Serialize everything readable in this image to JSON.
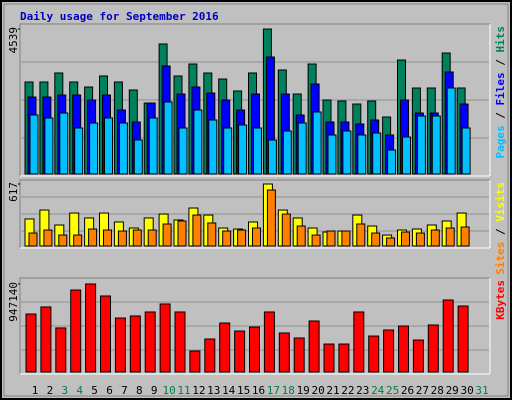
{
  "chart_data": {
    "type": "bar",
    "title": "Daily usage for September 2016",
    "title_color": "#0000c0",
    "categories": [
      "1",
      "2",
      "3",
      "4",
      "5",
      "6",
      "7",
      "8",
      "9",
      "10",
      "11",
      "12",
      "13",
      "14",
      "15",
      "16",
      "17",
      "18",
      "19",
      "20",
      "21",
      "22",
      "23",
      "24",
      "25",
      "26",
      "27",
      "28",
      "29",
      "30",
      "31"
    ],
    "category_colors": [
      "#000000",
      "#000000",
      "#008040",
      "#008040",
      "#000000",
      "#000000",
      "#000000",
      "#000000",
      "#000000",
      "#008040",
      "#008040",
      "#000000",
      "#000000",
      "#000000",
      "#000000",
      "#000000",
      "#008040",
      "#008040",
      "#000000",
      "#000000",
      "#000000",
      "#000000",
      "#000000",
      "#008040",
      "#008040",
      "#000000",
      "#000000",
      "#000000",
      "#000000",
      "#000000",
      "#008040"
    ],
    "legend_separator": " / ",
    "panels": [
      {
        "ylim": [
          0,
          4633
        ],
        "yticks": [
          4539
        ],
        "series": [
          {
            "name": "Hits",
            "color": "#00805c",
            "values": [
              2880,
              2880,
              3162,
              2880,
              2723,
              3068,
              2880,
              2630,
              2222,
              4070,
              3068,
              3443,
              3162,
              2974,
              2598,
              3162,
              4539,
              3256,
              2504,
              3443,
              2316,
              2285,
              2191,
              2285,
              1784,
              3568,
              2692,
              2692,
              3787,
              2692,
              null
            ]
          },
          {
            "name": "Files",
            "color": "#0000ff",
            "values": [
              2410,
              2410,
              2473,
              2473,
              2316,
              2473,
              2003,
              1628,
              2222,
              3380,
              2504,
              2723,
              2535,
              2316,
              2003,
              2504,
              3662,
              2504,
              1847,
              2817,
              1628,
              1628,
              1565,
              1690,
              1221,
              2316,
              1909,
              1909,
              3193,
              2191,
              null
            ]
          },
          {
            "name": "Pages",
            "color": "#00c0ff",
            "values": [
              1847,
              1753,
              1909,
              1440,
              1596,
              1753,
              1596,
              1064,
              1753,
              2254,
              1440,
              2003,
              1690,
              1440,
              1534,
              1440,
              1064,
              1346,
              1596,
              1941,
              1221,
              1346,
              1221,
              1283,
              751,
              1158,
              1815,
              1815,
              2692,
              1440,
              null
            ]
          }
        ]
      },
      {
        "ylim": [
          0,
          637
        ],
        "yticks": [
          617
        ],
        "series": [
          {
            "name": "Visits",
            "color": "#ffff00",
            "values": [
              269,
              358,
              209,
              328,
              279,
              328,
              239,
              179,
              279,
              318,
              259,
              378,
              308,
              179,
              169,
              239,
              617,
              358,
              279,
              179,
              139,
              149,
              308,
              199,
              109,
              159,
              169,
              209,
              249,
              328,
              null
            ]
          },
          {
            "name": "Sites",
            "color": "#ff8000",
            "values": [
              129,
              159,
              109,
              109,
              169,
              159,
              149,
              159,
              159,
              219,
              249,
              308,
              229,
              149,
              159,
              179,
              557,
              318,
              199,
              109,
              149,
              149,
              219,
              129,
              80,
              139,
              129,
              159,
              179,
              189,
              null
            ]
          }
        ]
      },
      {
        "ylim": [
          0,
          990000
        ],
        "yticks": [
          947140
        ],
        "series": [
          {
            "name": "KBytes",
            "color": "#ff0000",
            "values": [
              624000,
              700000,
              474000,
              882000,
              947140,
              818000,
              581000,
              603000,
              646000,
              732000,
              646000,
              226000,
              355000,
              527000,
              441000,
              484000,
              646000,
              420000,
              366000,
              549000,
              301000,
              301000,
              646000,
              387000,
              452000,
              495000,
              344000,
              506000,
              775000,
              710000,
              null
            ]
          }
        ]
      }
    ]
  }
}
